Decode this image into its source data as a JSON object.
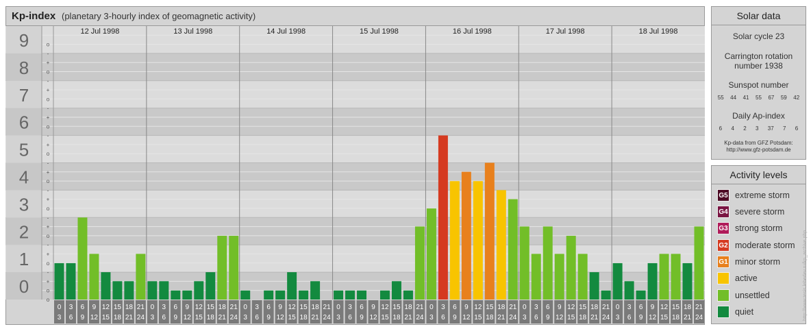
{
  "header": {
    "title": "Kp-index",
    "subtitle": "(planetary 3-hourly index of geomagnetic activity)"
  },
  "chart_data": {
    "type": "bar",
    "title": "Kp-index",
    "subtitle": "(planetary 3-hourly index of geomagnetic activity)",
    "ylim": [
      0,
      9
    ],
    "y_ticks": [
      "0",
      "1",
      "2",
      "3",
      "4",
      "5",
      "6",
      "7",
      "8",
      "9"
    ],
    "minor_tick_marks": [
      "-",
      "o",
      "+"
    ],
    "days": [
      "12 Jul 1998",
      "13 Jul 1998",
      "14 Jul 1998",
      "15 Jul 1998",
      "16 Jul 1998",
      "17 Jul 1998",
      "18 Jul 1998"
    ],
    "interval_labels": [
      [
        "0",
        "3"
      ],
      [
        "3",
        "6"
      ],
      [
        "6",
        "9"
      ],
      [
        "9",
        "12"
      ],
      [
        "12",
        "15"
      ],
      [
        "15",
        "18"
      ],
      [
        "18",
        "21"
      ],
      [
        "21",
        "24"
      ]
    ],
    "values": [
      [
        1.33,
        1.33,
        3.0,
        1.67,
        1.0,
        0.67,
        0.67,
        1.67
      ],
      [
        0.67,
        0.67,
        0.33,
        0.33,
        0.67,
        1.0,
        2.33,
        2.33
      ],
      [
        0.33,
        0.0,
        0.33,
        0.33,
        1.0,
        0.33,
        0.67,
        0.0
      ],
      [
        0.33,
        0.33,
        0.33,
        0.0,
        0.33,
        0.67,
        0.33,
        2.67
      ],
      [
        3.33,
        6.0,
        4.33,
        4.67,
        4.33,
        5.0,
        4.0,
        3.67
      ],
      [
        2.67,
        1.67,
        2.67,
        1.67,
        2.33,
        1.67,
        1.0,
        0.33
      ],
      [
        1.33,
        0.67,
        0.33,
        1.33,
        1.67,
        1.67,
        1.33,
        2.67
      ]
    ],
    "colors": {
      "quiet": "#138a3f",
      "unsettled": "#72be28",
      "active": "#f8c400",
      "minor_storm": "#e8801d",
      "moderate_storm": "#d53a20",
      "strong_storm": "#b01c5a",
      "severe_storm": "#7a1542",
      "extreme_storm": "#4d0b24"
    }
  },
  "solar_data": {
    "title": "Solar data",
    "solar_cycle": "Solar cycle 23",
    "carrington_line1": "Carrington rotation",
    "carrington_line2": "number 1938",
    "sunspot_label": "Sunspot number",
    "sunspot_numbers": [
      "55",
      "44",
      "41",
      "55",
      "67",
      "59",
      "42"
    ],
    "ap_label": "Daily Ap-index",
    "ap_values": [
      "6",
      "4",
      "2",
      "3",
      "37",
      "7",
      "6"
    ],
    "source_line1": "Kp-data from GFZ Potsdam:",
    "source_line2": "http://www.gfz-potsdam.de"
  },
  "activity_levels": {
    "title": "Activity levels",
    "items": [
      {
        "badge": "G5",
        "label": "extreme storm",
        "color": "#4d0b24"
      },
      {
        "badge": "G4",
        "label": "severe storm",
        "color": "#7a1542"
      },
      {
        "badge": "G3",
        "label": "strong storm",
        "color": "#b01c5a"
      },
      {
        "badge": "G2",
        "label": "moderate storm",
        "color": "#d53a20"
      },
      {
        "badge": "G1",
        "label": "minor storm",
        "color": "#e8801d"
      },
      {
        "badge": "",
        "label": "active",
        "color": "#f8c400"
      },
      {
        "badge": "",
        "label": "unsettled",
        "color": "#72be28"
      },
      {
        "badge": "",
        "label": "quiet",
        "color": "#138a3f"
      }
    ]
  },
  "watermark": "http://www.tesis.lebedev.ru/kp_archive.php"
}
